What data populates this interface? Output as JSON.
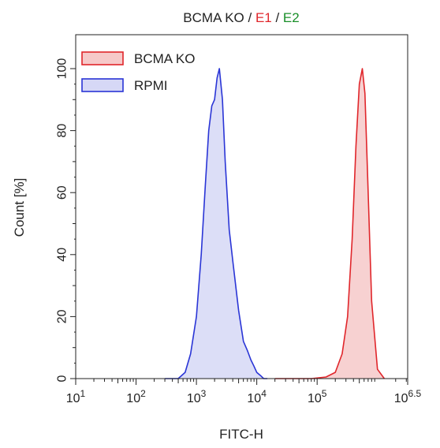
{
  "chart_data": {
    "type": "area",
    "title": {
      "parts": [
        {
          "text": "BCMA KO",
          "color": "#222222"
        },
        {
          "text": " / ",
          "color": "#222222"
        },
        {
          "text": "E1",
          "color": "#e0262b"
        },
        {
          "text": " / ",
          "color": "#222222"
        },
        {
          "text": "E2",
          "color": "#1a8f2a"
        }
      ]
    },
    "xlabel": "FITC-H",
    "ylabel": "Count [%]",
    "x_scale": "log10",
    "xlim": [
      10,
      3162278
    ],
    "ylim": [
      0,
      105
    ],
    "x_ticks": [
      {
        "base": "10",
        "exp": "1"
      },
      {
        "base": "10",
        "exp": "2"
      },
      {
        "base": "10",
        "exp": "3"
      },
      {
        "base": "10",
        "exp": "4"
      },
      {
        "base": "10",
        "exp": "5"
      },
      {
        "base": "10",
        "exp": "6.5"
      }
    ],
    "y_ticks": [
      "0",
      "20",
      "40",
      "60",
      "80",
      "100"
    ],
    "grid": false,
    "legend_position": "top-left",
    "series": [
      {
        "name": "BCMA KO",
        "stroke": "#e0262b",
        "fill": "#f6c9c9",
        "x": [
          20000,
          40000,
          80000,
          140000,
          200000,
          260000,
          320000,
          380000,
          440000,
          500000,
          560000,
          620000,
          700000,
          800000,
          1000000,
          1300000
        ],
        "y": [
          0,
          0,
          0,
          0.5,
          2,
          8,
          20,
          45,
          75,
          95,
          100,
          92,
          60,
          25,
          3,
          0
        ]
      },
      {
        "name": "RPMI",
        "stroke": "#2a35d6",
        "fill": "#d6d8f6",
        "x": [
          300,
          500,
          650,
          800,
          1000,
          1200,
          1400,
          1600,
          1800,
          2000,
          2200,
          2400,
          2700,
          3000,
          3500,
          4000,
          5000,
          6000,
          7000,
          8000,
          9000,
          10000,
          11500,
          13000,
          15000
        ],
        "y": [
          0,
          0,
          2,
          8,
          20,
          40,
          62,
          80,
          88,
          90,
          97,
          100,
          90,
          70,
          48,
          38,
          22,
          12,
          9,
          6,
          4,
          2,
          1,
          0,
          0
        ]
      }
    ]
  }
}
